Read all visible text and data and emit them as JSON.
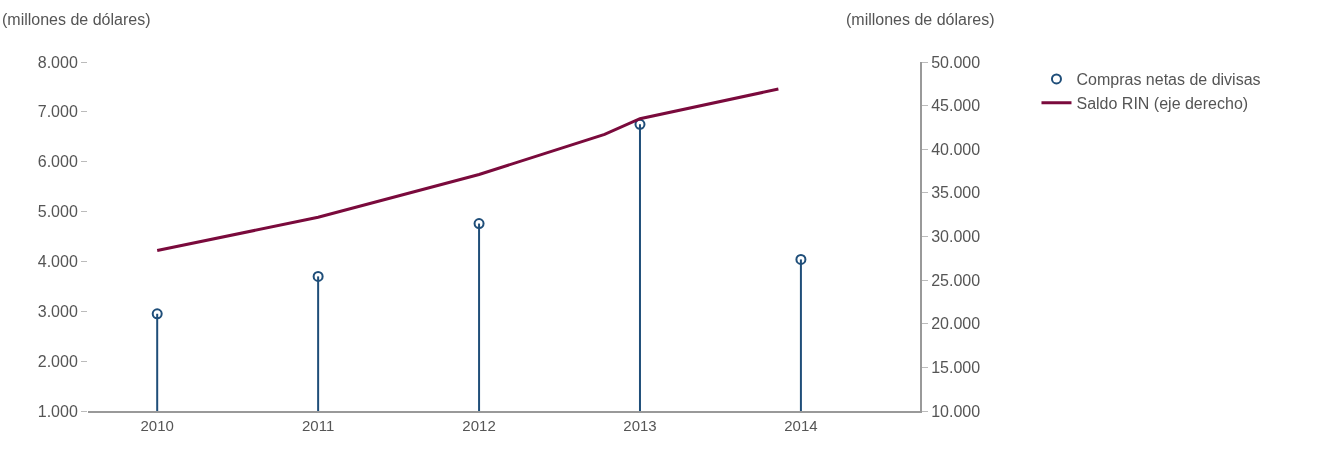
{
  "chart_data": {
    "type": "lollipop",
    "ylabel": "(millones de dólares)",
    "y2label": "(millones de dólares)",
    "x": [
      2010,
      2011,
      2012,
      2013,
      2014
    ],
    "xlim": [
      2009.57,
      2014.74
    ],
    "xticks": [
      2010,
      2011,
      2012,
      2013,
      2014
    ],
    "ylim": [
      1000,
      8000
    ],
    "yticks": [
      {
        "value": 1000,
        "label": "1.000"
      },
      {
        "value": 2000,
        "label": "2.000"
      },
      {
        "value": 3000,
        "label": "3.000"
      },
      {
        "value": 4000,
        "label": "4.000"
      },
      {
        "value": 5000,
        "label": "5.000"
      },
      {
        "value": 6000,
        "label": "6.000"
      },
      {
        "value": 7000,
        "label": "7.000"
      },
      {
        "value": 8000,
        "label": "8.000"
      }
    ],
    "y2lim": [
      10000,
      50000
    ],
    "y2ticks": [
      {
        "value": 10000,
        "label": "10.000"
      },
      {
        "value": 15000,
        "label": "15.000"
      },
      {
        "value": 20000,
        "label": "20.000"
      },
      {
        "value": 25000,
        "label": "25.000"
      },
      {
        "value": 30000,
        "label": "30.000"
      },
      {
        "value": 35000,
        "label": "35.000"
      },
      {
        "value": 40000,
        "label": "40.000"
      },
      {
        "value": 45000,
        "label": "45.000"
      },
      {
        "value": 50000,
        "label": "50.000"
      }
    ],
    "series": [
      {
        "name": "Compras netas de divisas",
        "color": "#1f4e79",
        "marker": "circle",
        "values": [
          2950,
          3700,
          4760,
          6750,
          4040
        ]
      },
      {
        "name": "Saldo RIN (eje derecho)",
        "type": "line",
        "axis": "y2",
        "color": "#7a0a3c",
        "marker": "none",
        "x": [
          2010,
          2011,
          2012,
          2012.78,
          2013,
          2013.86
        ],
        "values": [
          28400,
          32200,
          37100,
          41700,
          43500,
          46900
        ]
      }
    ],
    "grid": false,
    "legend": "right"
  }
}
